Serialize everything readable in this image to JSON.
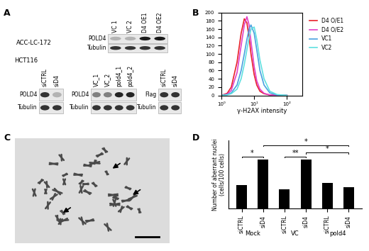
{
  "panel_labels": [
    "A",
    "B",
    "C",
    "D"
  ],
  "blots": {
    "top": {
      "cell_line": "ACC-LC-172",
      "lanes": [
        "VC 1",
        "VC 2",
        "D4 OE1",
        "D4 OE2"
      ],
      "rows": [
        {
          "label": "POLD4",
          "bands": [
            0.3,
            0.3,
            0.9,
            0.9
          ]
        },
        {
          "label": "Tubulin",
          "bands": [
            0.8,
            0.8,
            0.8,
            0.8
          ]
        }
      ]
    },
    "bottom": {
      "cell_line": "HCT116",
      "groups": [
        {
          "lanes": [
            "siCTRL",
            "siD4"
          ],
          "rows": [
            {
              "label": "POLD4",
              "bands": [
                0.8,
                0.3
              ]
            },
            {
              "label": "Tubulin",
              "bands": [
                0.8,
                0.8
              ]
            }
          ]
        },
        {
          "lanes": [
            "VC_1",
            "VC_2",
            "pold4_1",
            "pold4_2"
          ],
          "rows": [
            {
              "label": "POLD4",
              "bands": [
                0.5,
                0.5,
                0.85,
                0.85
              ]
            },
            {
              "label": "Tubulin",
              "bands": [
                0.8,
                0.8,
                0.8,
                0.8
              ]
            }
          ]
        },
        {
          "lanes": [
            "siCTRL",
            "siD4"
          ],
          "rows": [
            {
              "label": "Flag",
              "bands": [
                0.8,
                0.8
              ]
            },
            {
              "label": "Tubulin",
              "bands": [
                0.8,
                0.8
              ]
            }
          ]
        }
      ]
    }
  },
  "chart_data": [
    {
      "type": "line",
      "xlabel": "γ-H2AX intensity",
      "x": [
        1,
        1.5,
        2,
        3,
        4,
        5,
        6,
        7,
        8,
        10,
        12,
        15,
        20,
        30,
        50,
        100
      ],
      "series": [
        {
          "name": "D4 O/E1",
          "color": "#e8202a",
          "values": [
            0,
            5,
            20,
            80,
            150,
            185,
            175,
            140,
            100,
            50,
            25,
            10,
            4,
            1,
            0,
            0
          ]
        },
        {
          "name": "D4 O/E2",
          "color": "#e040c8",
          "values": [
            0,
            3,
            12,
            55,
            120,
            170,
            190,
            170,
            130,
            70,
            35,
            15,
            5,
            1,
            0,
            0
          ]
        },
        {
          "name": "VC1",
          "color": "#4a9fe0",
          "values": [
            0,
            2,
            6,
            25,
            60,
            100,
            135,
            160,
            170,
            150,
            110,
            60,
            25,
            6,
            1,
            0
          ]
        },
        {
          "name": "VC2",
          "color": "#5fe0e0",
          "values": [
            0,
            1,
            4,
            15,
            40,
            75,
            110,
            140,
            160,
            165,
            135,
            85,
            40,
            10,
            2,
            0
          ]
        }
      ],
      "log": "x",
      "xlim": [
        1,
        300
      ],
      "xticks": [
        {
          "value": 1,
          "label": "10⁰"
        },
        {
          "value": 10,
          "label": "10¹"
        },
        {
          "value": 100,
          "label": "10²"
        }
      ],
      "ylim": [
        0,
        200
      ],
      "yticks": [
        0,
        20,
        40,
        60,
        80,
        100,
        120,
        140,
        160,
        180,
        200
      ],
      "legend": "right"
    },
    {
      "type": "bar",
      "ylabel": "Number of aberrant nuclei\n(cells/100 cells)",
      "categories": [
        "siCTRL",
        "siD4",
        "siCTRL",
        "siD4",
        "siCTRL",
        "siD4"
      ],
      "values": [
        11,
        23,
        9,
        23,
        12,
        10
      ],
      "color": "#000000",
      "ylim": [
        0,
        32
      ],
      "tick_labels": "x",
      "groups": [
        {
          "label": "Mock",
          "span": [
            0,
            1
          ]
        },
        {
          "label": "VC",
          "span": [
            2,
            3
          ]
        },
        {
          "label": "pold4",
          "span": [
            4,
            5
          ]
        }
      ],
      "significance": [
        {
          "from": 0,
          "to": 1,
          "label": "*"
        },
        {
          "from": 2,
          "to": 3,
          "label": "**"
        },
        {
          "from": 3,
          "to": 5,
          "label": "*"
        },
        {
          "from": 1,
          "to": 5,
          "label": "*"
        }
      ]
    }
  ]
}
